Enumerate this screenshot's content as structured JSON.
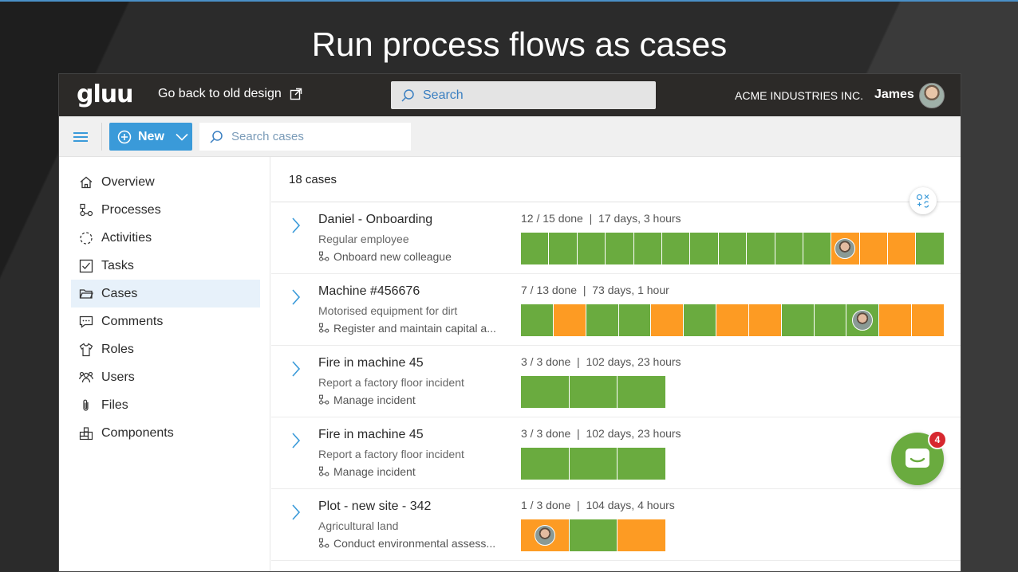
{
  "slide": {
    "title": "Run process flows as cases"
  },
  "topbar": {
    "logo": "gluu",
    "old_design_label": "Go back to old design",
    "search_placeholder": "Search",
    "org_name": "ACME INDUSTRIES INC.",
    "user_name": "James"
  },
  "toolbar": {
    "new_label": "New",
    "search_placeholder": "Search cases"
  },
  "sidebar": {
    "items": [
      {
        "label": "Overview",
        "icon": "home-icon"
      },
      {
        "label": "Processes",
        "icon": "process-icon"
      },
      {
        "label": "Activities",
        "icon": "activities-icon"
      },
      {
        "label": "Tasks",
        "icon": "checkbox-icon"
      },
      {
        "label": "Cases",
        "icon": "folder-icon",
        "active": true
      },
      {
        "label": "Comments",
        "icon": "comment-icon"
      },
      {
        "label": "Roles",
        "icon": "shirt-icon"
      },
      {
        "label": "Users",
        "icon": "users-icon"
      },
      {
        "label": "Files",
        "icon": "paperclip-icon"
      },
      {
        "label": "Components",
        "icon": "components-icon"
      }
    ]
  },
  "main": {
    "case_count": "18 cases",
    "cases": [
      {
        "title": "Daniel - Onboarding",
        "subtitle": "Regular employee",
        "process": "Onboard new colleague",
        "status": "12 / 15 done  |  17 days, 3 hours",
        "segments": [
          "green",
          "green",
          "green",
          "green",
          "green",
          "green",
          "green",
          "green",
          "green",
          "green",
          "green",
          "orange-avatar",
          "orange",
          "orange",
          "green"
        ]
      },
      {
        "title": "Machine #456676",
        "subtitle": "Motorised equipment for dirt",
        "process": "Register and maintain capital a...",
        "status": "7 / 13 done  |  73 days, 1 hour",
        "segments": [
          "green",
          "orange",
          "green",
          "green",
          "orange",
          "green",
          "orange",
          "orange",
          "green",
          "green",
          "green-avatar",
          "orange",
          "orange"
        ]
      },
      {
        "title": "Fire in machine 45",
        "subtitle": "Report a factory floor incident",
        "process": "Manage incident",
        "status": "3 / 3 done  |  102 days, 23 hours",
        "segments": [
          "green",
          "green",
          "green"
        ]
      },
      {
        "title": "Fire in machine 45",
        "subtitle": "Report a factory floor incident",
        "process": "Manage incident",
        "status": "3 / 3 done  |  102 days, 23 hours",
        "segments": [
          "green",
          "green",
          "green"
        ]
      },
      {
        "title": "Plot - new site - 342",
        "subtitle": "Agricultural land",
        "process": "Conduct environmental assess...",
        "status": "1 / 3 done  |  104 days, 4 hours",
        "segments": [
          "orange-avatar",
          "green",
          "orange"
        ]
      }
    ]
  },
  "chat": {
    "badge_count": "4"
  },
  "colors": {
    "green": "#6aab3f",
    "orange": "#fd9b23",
    "accent": "#3a9ad9",
    "topbar": "#2c2a28"
  }
}
